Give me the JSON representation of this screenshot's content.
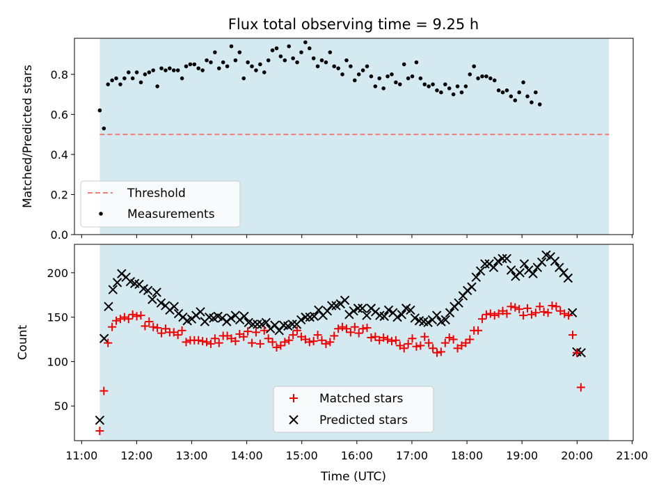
{
  "title": "Flux total observing time = 9.25 h",
  "colors": {
    "observing_band": "#d4eaf0",
    "threshold": "#f07c7c",
    "matched": "#ee0000",
    "predicted": "#000000",
    "measurements": "#000000"
  },
  "chart_data": [
    {
      "type": "scatter",
      "panel": "top",
      "ylabel": "Matched/Predicted stars",
      "ylim": [
        0,
        0.98
      ],
      "yticks": [
        0.0,
        0.2,
        0.4,
        0.6,
        0.8
      ],
      "ytick_labels": [
        "0.0",
        "0.2",
        "0.4",
        "0.6",
        "0.8"
      ],
      "xlim": [
        10.87,
        21.02
      ],
      "band": [
        11.33,
        20.58
      ],
      "threshold": 0.5,
      "legend": {
        "position": "lower-left",
        "entries": [
          "Threshold",
          "Measurements"
        ]
      },
      "series": [
        {
          "name": "Threshold",
          "kind": "dashed-line",
          "y": 0.5
        },
        {
          "name": "Measurements",
          "kind": "points",
          "x_start": 11.33,
          "x_step": 0.0747,
          "y": [
            0.62,
            0.53,
            0.75,
            0.77,
            0.78,
            0.75,
            0.78,
            0.81,
            0.78,
            0.81,
            0.76,
            0.8,
            0.81,
            0.82,
            0.74,
            0.83,
            0.82,
            0.83,
            0.82,
            0.82,
            0.78,
            0.84,
            0.85,
            0.85,
            0.83,
            0.82,
            0.87,
            0.86,
            0.91,
            0.83,
            0.86,
            0.84,
            0.94,
            0.87,
            0.91,
            0.78,
            0.86,
            0.84,
            0.82,
            0.85,
            0.81,
            0.87,
            0.92,
            0.93,
            0.89,
            0.87,
            0.94,
            0.88,
            0.86,
            0.91,
            0.96,
            0.93,
            0.88,
            0.84,
            0.87,
            0.86,
            0.91,
            0.84,
            0.83,
            0.8,
            0.87,
            0.84,
            0.77,
            0.8,
            0.82,
            0.84,
            0.79,
            0.74,
            0.78,
            0.73,
            0.79,
            0.8,
            0.76,
            0.75,
            0.85,
            0.78,
            0.79,
            0.86,
            0.78,
            0.75,
            0.74,
            0.75,
            0.72,
            0.71,
            0.75,
            0.73,
            0.7,
            0.74,
            0.71,
            0.74,
            0.8,
            0.84,
            0.78,
            0.79,
            0.79,
            0.78,
            0.77,
            0.72,
            0.71,
            0.72,
            0.69,
            0.67,
            0.71,
            0.76,
            0.69,
            0.66,
            0.71,
            0.65
          ]
        }
      ]
    },
    {
      "type": "scatter",
      "panel": "bottom",
      "xlabel": "Time (UTC)",
      "ylabel": "Count",
      "ylim": [
        11,
        232
      ],
      "yticks": [
        50,
        100,
        150,
        200
      ],
      "ytick_labels": [
        "50",
        "100",
        "150",
        "200"
      ],
      "xlim": [
        10.87,
        21.02
      ],
      "xticks": [
        11,
        12,
        13,
        14,
        15,
        16,
        17,
        18,
        19,
        20,
        21
      ],
      "xtick_labels": [
        "11:00",
        "12:00",
        "13:00",
        "14:00",
        "15:00",
        "16:00",
        "17:00",
        "18:00",
        "19:00",
        "20:00",
        "21:00"
      ],
      "band": [
        11.33,
        20.58
      ],
      "legend": {
        "position": "lower-center",
        "entries": [
          "Matched stars",
          "Predicted stars"
        ]
      },
      "series": [
        {
          "name": "Matched stars",
          "marker": "+",
          "x_start": 11.33,
          "x_step": 0.0747,
          "y": [
            22,
            67,
            121,
            139,
            146,
            148,
            150,
            148,
            153,
            151,
            152,
            140,
            145,
            139,
            138,
            132,
            137,
            133,
            133,
            130,
            135,
            122,
            124,
            124,
            124,
            123,
            122,
            120,
            126,
            121,
            129,
            129,
            126,
            123,
            131,
            128,
            134,
            121,
            133,
            120,
            135,
            126,
            122,
            116,
            118,
            122,
            124,
            130,
            135,
            128,
            125,
            122,
            123,
            130,
            124,
            120,
            122,
            129,
            137,
            139,
            137,
            133,
            139,
            132,
            137,
            138,
            127,
            128,
            124,
            127,
            125,
            123,
            124,
            118,
            115,
            120,
            126,
            117,
            118,
            128,
            121,
            115,
            110,
            111,
            121,
            127,
            125,
            115,
            118,
            121,
            125,
            135,
            135,
            148,
            153,
            154,
            152,
            154,
            157,
            154,
            162,
            161,
            159,
            152,
            160,
            153,
            155,
            162,
            156,
            155,
            163,
            162,
            157,
            154,
            152,
            130,
            110,
            71
          ]
        },
        {
          "name": "Predicted stars",
          "marker": "x",
          "x_start": 11.33,
          "x_step": 0.0795,
          "y": [
            34,
            126,
            162,
            181,
            189,
            199,
            195,
            190,
            188,
            187,
            182,
            180,
            170,
            178,
            166,
            163,
            158,
            162,
            154,
            150,
            146,
            148,
            152,
            156,
            145,
            150,
            149,
            151,
            149,
            145,
            149,
            152,
            147,
            151,
            144,
            142,
            142,
            142,
            144,
            137,
            141,
            135,
            141,
            140,
            142,
            142,
            147,
            150,
            150,
            151,
            158,
            152,
            157,
            163,
            163,
            165,
            169,
            153,
            157,
            160,
            160,
            152,
            160,
            156,
            152,
            151,
            158,
            155,
            150,
            153,
            160,
            158,
            149,
            146,
            145,
            144,
            147,
            152,
            145,
            147,
            155,
            162,
            166,
            174,
            180,
            184,
            195,
            202,
            210,
            210,
            206,
            213,
            216,
            216,
            203,
            196,
            200,
            210,
            203,
            199,
            206,
            212,
            220,
            218,
            213,
            206,
            200,
            194,
            155,
            111,
            110
          ]
        }
      ]
    }
  ]
}
